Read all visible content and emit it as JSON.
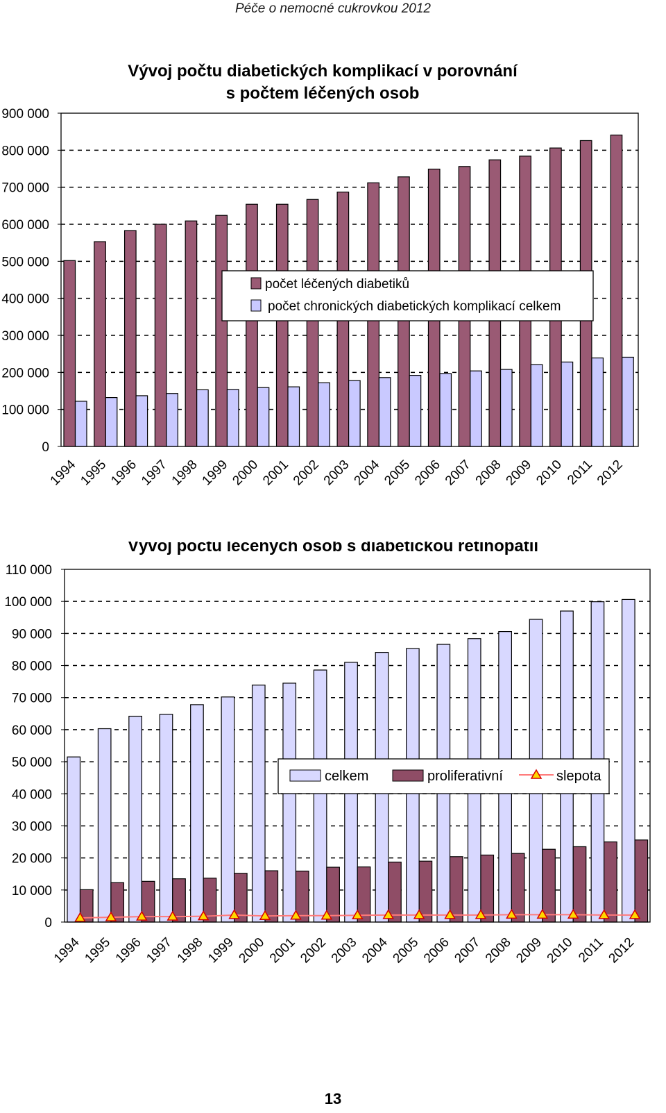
{
  "header": {
    "text": "Péče o nemocné cukrovkou 2012"
  },
  "page_number": "13",
  "colors": {
    "treated": "#9a5a74",
    "complications": "#c9c9ff",
    "celkem": "#d8d8ff",
    "proliferative": "#8f4d66",
    "blindness_line": "#ff7a7a",
    "blindness_marker": "#ffd800"
  },
  "chart_data": [
    {
      "type": "bar",
      "title": "Vývoj počtu diabetických komplikací v porovnání s počtem léčených osob",
      "title_lines": [
        "Vývoj počtu diabetických komplikací v porovnání",
        "s počtem léčených osob"
      ],
      "categories": [
        "1994",
        "1995",
        "1996",
        "1997",
        "1998",
        "1999",
        "2000",
        "2001",
        "2002",
        "2003",
        "2004",
        "2005",
        "2006",
        "2007",
        "2008",
        "2009",
        "2010",
        "2011",
        "2012"
      ],
      "series": [
        {
          "name": "počet léčených diabetiků",
          "values": [
            502000,
            553000,
            583000,
            600000,
            609000,
            624000,
            654000,
            654000,
            667000,
            687000,
            712000,
            728000,
            749000,
            756000,
            774000,
            784000,
            806000,
            826000,
            841000
          ]
        },
        {
          "name": "počet chronických diabetických komplikací celkem",
          "values": [
            122000,
            132000,
            137000,
            143000,
            153000,
            154000,
            159000,
            161000,
            172000,
            178000,
            186000,
            192000,
            197000,
            204000,
            208000,
            221000,
            228000,
            239000,
            241000
          ]
        }
      ],
      "ylim": [
        0,
        900000
      ],
      "yticks": [
        0,
        100000,
        200000,
        300000,
        400000,
        500000,
        600000,
        700000,
        800000,
        900000
      ],
      "ytick_labels": [
        "0",
        "100 000",
        "200 000",
        "300 000",
        "400 000",
        "500 000",
        "600 000",
        "700 000",
        "800 000",
        "900 000"
      ],
      "xlabel": "",
      "ylabel": "",
      "grid": "dashed horizontal",
      "legend": "center"
    },
    {
      "type": "bar",
      "title": "Vývoj počtu léčených osob s diabetickou retinopatií",
      "categories": [
        "1994",
        "1995",
        "1996",
        "1997",
        "1998",
        "1999",
        "2000",
        "2001",
        "2002",
        "2003",
        "2004",
        "2005",
        "2006",
        "2007",
        "2008",
        "2009",
        "2010",
        "2011",
        "2012"
      ],
      "series": [
        {
          "name": "celkem",
          "values": [
            51500,
            60300,
            64200,
            64800,
            67800,
            70200,
            73900,
            74500,
            78600,
            81000,
            84100,
            85300,
            86600,
            88400,
            90600,
            94400,
            97000,
            99900,
            100600
          ]
        },
        {
          "name": "proliferativní",
          "values": [
            10100,
            12300,
            12700,
            13500,
            13700,
            15200,
            16000,
            15900,
            17100,
            17200,
            18700,
            19000,
            20400,
            20900,
            21400,
            22700,
            23500,
            25000,
            25600
          ]
        },
        {
          "name": "slepota",
          "kind": "line",
          "values": [
            1300,
            1500,
            1700,
            1700,
            1800,
            2200,
            1900,
            2000,
            2000,
            2100,
            2200,
            2200,
            2200,
            2200,
            2300,
            2300,
            2300,
            2200,
            2200
          ]
        }
      ],
      "ylim": [
        0,
        110000
      ],
      "yticks": [
        0,
        10000,
        20000,
        30000,
        40000,
        50000,
        60000,
        70000,
        80000,
        90000,
        100000,
        110000
      ],
      "ytick_labels": [
        "0",
        "10 000",
        "20 000",
        "30 000",
        "40 000",
        "50 000",
        "60 000",
        "70 000",
        "80 000",
        "90 000",
        "100 000",
        "110 000"
      ],
      "xlabel": "",
      "ylabel": "",
      "grid": "dashed horizontal",
      "legend": "center-right"
    }
  ]
}
